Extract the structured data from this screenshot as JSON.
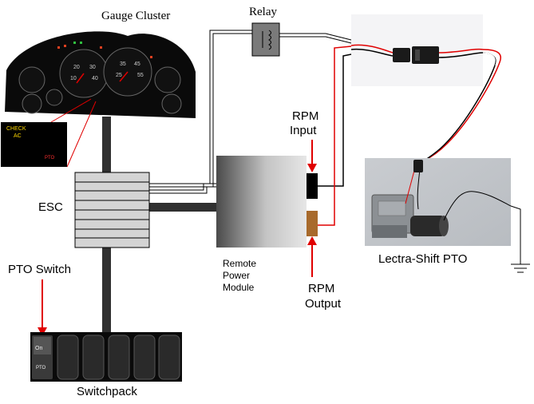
{
  "labels": {
    "gauge_cluster": "Gauge Cluster",
    "relay": "Relay",
    "rpm_input": [
      "RPM",
      "Input"
    ],
    "rpm_output": [
      "RPM",
      "Output"
    ],
    "esc": "ESC",
    "pto_switch": "PTO Switch",
    "switchpack": "Switchpack",
    "remote_power_module": [
      "Remote",
      "Power",
      "Module"
    ],
    "lectra_shift_pto": "Lectra-Shift PTO"
  },
  "inset": {
    "check": "CHECK",
    "ac": "AC",
    "pto": "PTO"
  },
  "switch": {
    "on": "On",
    "pto": "PTO"
  },
  "colors": {
    "signal_wire": "#e00000",
    "harness": "#303030",
    "indicator_text": "#ffd800"
  }
}
